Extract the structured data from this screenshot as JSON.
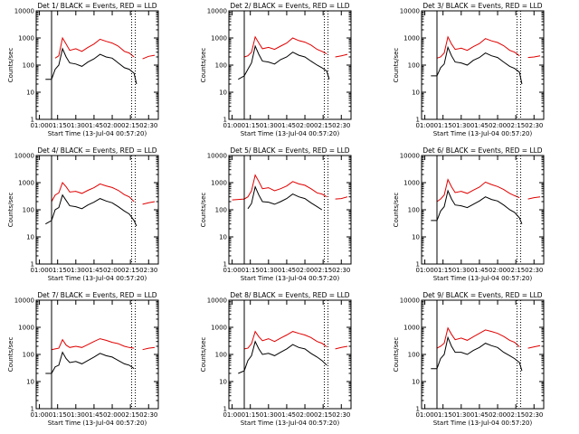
{
  "chart_data": [
    {
      "type": "line",
      "title": "Det 1/ BLACK = Events, RED = LLD",
      "xlabel": "Start Time (13-Jul-04 00:57:20)",
      "ylabel": "Counts/sec",
      "yscale": "log",
      "ylim": [
        1,
        10000
      ],
      "xlim": [
        "00:57:20",
        "02:38:00"
      ],
      "x": [
        "01:00",
        "01:05",
        "01:10",
        "01:13",
        "01:16",
        "01:19",
        "01:22",
        "01:25",
        "01:30",
        "01:35",
        "01:40",
        "01:45",
        "01:50",
        "01:55",
        "02:00",
        "02:05",
        "02:10",
        "02:14",
        "02:18",
        "02:20",
        "02:25",
        "02:30",
        "02:35"
      ],
      "series": [
        {
          "name": "RED = LLD",
          "color": "#e00000",
          "values": [
            null,
            null,
            null,
            180,
            220,
            1000,
            600,
            350,
            400,
            320,
            450,
            600,
            900,
            750,
            650,
            500,
            320,
            280,
            200,
            null,
            170,
            210,
            230
          ]
        },
        {
          "name": "BLACK = Events",
          "color": "#000000",
          "values": [
            null,
            30,
            30,
            70,
            100,
            400,
            200,
            120,
            110,
            90,
            130,
            170,
            250,
            200,
            180,
            120,
            80,
            70,
            50,
            20,
            null,
            null,
            null
          ]
        }
      ]
    },
    {
      "type": "line",
      "title": "Det 2/ BLACK = Events, RED = LLD",
      "xlabel": "Start Time (13-Jul-04 00:57:20)",
      "ylabel": "Counts/sec",
      "yscale": "log",
      "ylim": [
        1,
        10000
      ],
      "xlim": [
        "00:57:20",
        "02:38:00"
      ],
      "x": [
        "01:00",
        "01:05",
        "01:10",
        "01:13",
        "01:16",
        "01:19",
        "01:22",
        "01:25",
        "01:30",
        "01:35",
        "01:40",
        "01:45",
        "01:50",
        "01:55",
        "02:00",
        "02:05",
        "02:10",
        "02:14",
        "02:18",
        "02:20",
        "02:25",
        "02:30",
        "02:35"
      ],
      "series": [
        {
          "name": "RED = LLD",
          "color": "#e00000",
          "values": [
            null,
            null,
            200,
            220,
            300,
            1100,
            650,
            400,
            450,
            380,
            500,
            650,
            1000,
            800,
            700,
            550,
            380,
            320,
            260,
            null,
            200,
            220,
            250
          ]
        },
        {
          "name": "BLACK = Events",
          "color": "#000000",
          "values": [
            null,
            30,
            40,
            70,
            120,
            500,
            250,
            140,
            130,
            110,
            160,
            200,
            300,
            230,
            200,
            140,
            100,
            80,
            60,
            30,
            null,
            null,
            null
          ]
        }
      ]
    },
    {
      "type": "line",
      "title": "Det 3/ BLACK = Events, RED = LLD",
      "xlabel": "Start Time (13-Jul-04 00:57:20)",
      "ylabel": "Counts/sec",
      "yscale": "log",
      "ylim": [
        1,
        10000
      ],
      "xlim": [
        "00:57:20",
        "02:38:00"
      ],
      "x": [
        "01:00",
        "01:05",
        "01:10",
        "01:13",
        "01:16",
        "01:19",
        "01:22",
        "01:25",
        "01:30",
        "01:35",
        "01:40",
        "01:45",
        "01:50",
        "01:55",
        "02:00",
        "02:05",
        "02:10",
        "02:14",
        "02:18",
        "02:20",
        "02:25",
        "02:30",
        "02:35"
      ],
      "series": [
        {
          "name": "RED = LLD",
          "color": "#e00000",
          "values": [
            null,
            null,
            180,
            200,
            280,
            1100,
            600,
            380,
            420,
            350,
            480,
            620,
            950,
            780,
            680,
            520,
            350,
            300,
            220,
            null,
            190,
            200,
            220
          ]
        },
        {
          "name": "BLACK = Events",
          "color": "#000000",
          "values": [
            null,
            40,
            40,
            80,
            110,
            450,
            220,
            130,
            120,
            100,
            150,
            190,
            280,
            220,
            190,
            130,
            90,
            75,
            55,
            20,
            null,
            null,
            null
          ]
        }
      ]
    },
    {
      "type": "line",
      "title": "Det 4/ BLACK = Events, RED = LLD",
      "xlabel": "Start Time (13-Jul-04 00:57:20)",
      "ylabel": "Counts/sec",
      "yscale": "log",
      "ylim": [
        1,
        10000
      ],
      "xlim": [
        "00:57:20",
        "02:38:00"
      ],
      "x": [
        "01:00",
        "01:05",
        "01:10",
        "01:13",
        "01:16",
        "01:19",
        "01:22",
        "01:25",
        "01:30",
        "01:35",
        "01:40",
        "01:45",
        "01:50",
        "01:55",
        "02:00",
        "02:05",
        "02:10",
        "02:14",
        "02:18",
        "02:20",
        "02:25",
        "02:30",
        "02:35"
      ],
      "series": [
        {
          "name": "RED = LLD",
          "color": "#e00000",
          "values": [
            null,
            null,
            200,
            350,
            420,
            1000,
            700,
            450,
            480,
            400,
            520,
            650,
            900,
            760,
            660,
            520,
            360,
            300,
            200,
            null,
            160,
            180,
            200
          ]
        },
        {
          "name": "BLACK = Events",
          "color": "#000000",
          "values": [
            null,
            30,
            40,
            100,
            120,
            350,
            220,
            140,
            130,
            110,
            150,
            190,
            260,
            210,
            180,
            130,
            90,
            70,
            40,
            25,
            null,
            null,
            null
          ]
        }
      ]
    },
    {
      "type": "line",
      "title": "Det 5/ BLACK = Events, RED = LLD",
      "xlabel": "Start Time (13-Jul-04 00:57:20)",
      "ylabel": "Counts/sec",
      "yscale": "log",
      "ylim": [
        1,
        10000
      ],
      "xlim": [
        "00:57:20",
        "02:38:00"
      ],
      "x": [
        "01:00",
        "01:05",
        "01:10",
        "01:13",
        "01:16",
        "01:19",
        "01:22",
        "01:25",
        "01:30",
        "01:35",
        "01:40",
        "01:45",
        "01:50",
        "01:55",
        "02:00",
        "02:05",
        "02:10",
        "02:14",
        "02:18",
        "02:20",
        "02:25",
        "02:30",
        "02:35"
      ],
      "series": [
        {
          "name": "RED = LLD",
          "color": "#e00000",
          "values": [
            230,
            240,
            250,
            300,
            500,
            1900,
            1100,
            600,
            650,
            500,
            600,
            750,
            1100,
            900,
            800,
            600,
            420,
            380,
            300,
            null,
            250,
            260,
            300
          ]
        },
        {
          "name": "BLACK = Events",
          "color": "#000000",
          "values": [
            null,
            null,
            null,
            110,
            170,
            700,
            350,
            200,
            190,
            160,
            200,
            260,
            380,
            300,
            260,
            180,
            130,
            100,
            null,
            null,
            null,
            null,
            null
          ]
        }
      ]
    },
    {
      "type": "line",
      "title": "Det 6/ BLACK = Events, RED = LLD",
      "xlabel": "Start Time (13-Jul-04 00:57:20)",
      "ylabel": "Counts/sec",
      "yscale": "log",
      "ylim": [
        1,
        10000
      ],
      "xlim": [
        "00:57:20",
        "02:38:00"
      ],
      "x": [
        "01:00",
        "01:05",
        "01:10",
        "01:13",
        "01:16",
        "01:19",
        "01:22",
        "01:25",
        "01:30",
        "01:35",
        "01:40",
        "01:45",
        "01:50",
        "01:55",
        "02:00",
        "02:05",
        "02:10",
        "02:14",
        "02:18",
        "02:20",
        "02:25",
        "02:30",
        "02:35"
      ],
      "series": [
        {
          "name": "RED = LLD",
          "color": "#e00000",
          "values": [
            null,
            null,
            200,
            250,
            350,
            1300,
            700,
            430,
            480,
            400,
            530,
            680,
            1050,
            850,
            720,
            560,
            400,
            330,
            280,
            null,
            250,
            280,
            300
          ]
        },
        {
          "name": "BLACK = Events",
          "color": "#000000",
          "values": [
            null,
            40,
            40,
            90,
            130,
            500,
            250,
            150,
            140,
            120,
            160,
            210,
            300,
            240,
            210,
            150,
            100,
            80,
            50,
            30,
            null,
            null,
            null
          ]
        }
      ]
    },
    {
      "type": "line",
      "title": "Det 7/ BLACK = Events, RED = LLD",
      "xlabel": "Start Time (13-Jul-04 00:57:20)",
      "ylabel": "Counts/sec",
      "yscale": "log",
      "ylim": [
        1,
        10000
      ],
      "xlim": [
        "00:57:20",
        "02:38:00"
      ],
      "x": [
        "01:00",
        "01:05",
        "01:10",
        "01:13",
        "01:16",
        "01:19",
        "01:22",
        "01:25",
        "01:30",
        "01:35",
        "01:40",
        "01:45",
        "01:50",
        "01:55",
        "02:00",
        "02:05",
        "02:10",
        "02:14",
        "02:18",
        "02:20",
        "02:25",
        "02:30",
        "02:35"
      ],
      "series": [
        {
          "name": "RED = LLD",
          "color": "#e00000",
          "values": [
            null,
            null,
            150,
            160,
            170,
            350,
            220,
            180,
            200,
            180,
            230,
            300,
            380,
            330,
            280,
            250,
            200,
            180,
            170,
            null,
            150,
            170,
            180
          ]
        },
        {
          "name": "BLACK = Events",
          "color": "#000000",
          "values": [
            null,
            20,
            20,
            35,
            40,
            120,
            70,
            50,
            55,
            45,
            60,
            80,
            110,
            90,
            80,
            60,
            45,
            40,
            30,
            null,
            null,
            null,
            null
          ]
        }
      ]
    },
    {
      "type": "line",
      "title": "Det 8/ BLACK = Events, RED = LLD",
      "xlabel": "Start Time (13-Jul-04 00:57:20)",
      "ylabel": "Counts/sec",
      "yscale": "log",
      "ylim": [
        1,
        10000
      ],
      "xlim": [
        "00:57:20",
        "02:38:00"
      ],
      "x": [
        "01:00",
        "01:05",
        "01:10",
        "01:13",
        "01:16",
        "01:19",
        "01:22",
        "01:25",
        "01:30",
        "01:35",
        "01:40",
        "01:45",
        "01:50",
        "01:55",
        "02:00",
        "02:05",
        "02:10",
        "02:14",
        "02:18",
        "02:20",
        "02:25",
        "02:30",
        "02:35"
      ],
      "series": [
        {
          "name": "RED = LLD",
          "color": "#e00000",
          "values": [
            null,
            null,
            160,
            170,
            250,
            700,
            450,
            320,
            380,
            300,
            400,
            520,
            700,
            600,
            520,
            420,
            300,
            260,
            190,
            null,
            160,
            180,
            200
          ]
        },
        {
          "name": "BLACK = Events",
          "color": "#000000",
          "values": [
            null,
            20,
            25,
            60,
            90,
            300,
            160,
            100,
            110,
            90,
            120,
            160,
            230,
            180,
            160,
            110,
            80,
            60,
            40,
            null,
            null,
            null,
            null
          ]
        }
      ]
    },
    {
      "type": "line",
      "title": "Det 9/ BLACK = Events, RED = LLD",
      "xlabel": "Start Time (13-Jul-04 00:57:20)",
      "ylabel": "Counts/sec",
      "yscale": "log",
      "ylim": [
        1,
        10000
      ],
      "xlim": [
        "00:57:20",
        "02:38:00"
      ],
      "x": [
        "01:00",
        "01:05",
        "01:10",
        "01:13",
        "01:16",
        "01:19",
        "01:22",
        "01:25",
        "01:30",
        "01:35",
        "01:40",
        "01:45",
        "01:50",
        "01:55",
        "02:00",
        "02:05",
        "02:10",
        "02:14",
        "02:18",
        "02:20",
        "02:25",
        "02:30",
        "02:35"
      ],
      "series": [
        {
          "name": "RED = LLD",
          "color": "#e00000",
          "values": [
            null,
            null,
            170,
            200,
            260,
            950,
            550,
            350,
            400,
            330,
            450,
            600,
            800,
            700,
            600,
            460,
            330,
            280,
            190,
            null,
            170,
            190,
            210
          ]
        },
        {
          "name": "BLACK = Events",
          "color": "#000000",
          "values": [
            null,
            30,
            30,
            70,
            100,
            420,
            200,
            120,
            120,
            100,
            140,
            180,
            260,
            210,
            180,
            120,
            90,
            70,
            50,
            25,
            null,
            null,
            null
          ]
        }
      ]
    }
  ],
  "ytick_labels": [
    "1",
    "10",
    "100",
    "1000",
    "10000"
  ],
  "xtick_labels": [
    "01:00",
    "01:15",
    "01:30",
    "01:45",
    "02:00",
    "02:15",
    "02:30"
  ],
  "xtick_times": [
    "01:00",
    "01:15",
    "01:30",
    "01:45",
    "02:00",
    "02:15",
    "02:30"
  ],
  "markers": [
    {
      "style": "solid",
      "time": "01:10"
    },
    {
      "style": "dotted",
      "time": "02:16"
    },
    {
      "style": "dotted",
      "time": "02:19"
    }
  ]
}
